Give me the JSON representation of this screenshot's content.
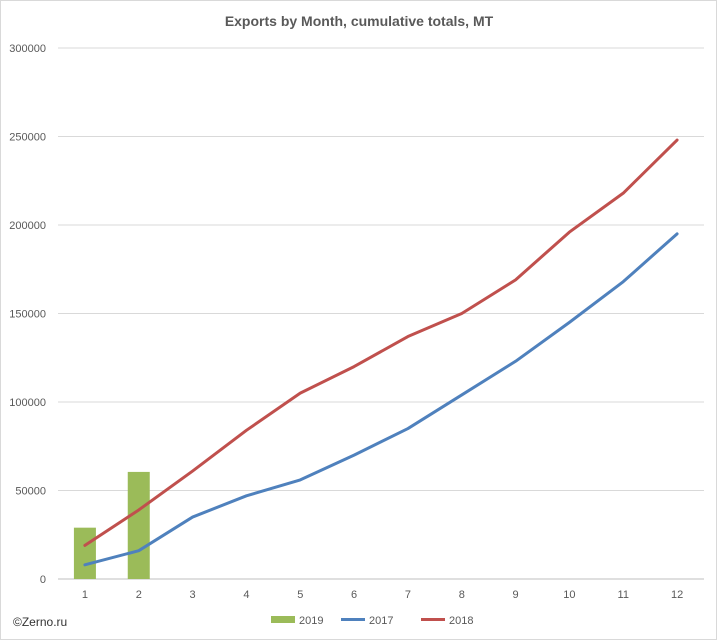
{
  "chart_data": {
    "type": "bar+line",
    "title": "Exports by Month, cumulative totals, MT",
    "xlabel": "",
    "ylabel": "",
    "ylim": [
      0,
      300000
    ],
    "yticks": [
      0,
      50000,
      100000,
      150000,
      200000,
      250000,
      300000
    ],
    "ytick_labels": [
      "0",
      "50000",
      "100000",
      "150000",
      "200000",
      "250000",
      "300000"
    ],
    "categories": [
      "1",
      "2",
      "3",
      "4",
      "5",
      "6",
      "7",
      "8",
      "9",
      "10",
      "11",
      "12"
    ],
    "grid": true,
    "legend_position": "bottom",
    "series": [
      {
        "name": "2019",
        "kind": "bar",
        "color": "#9bbb59",
        "values": [
          29000,
          60500,
          null,
          null,
          null,
          null,
          null,
          null,
          null,
          null,
          null,
          null
        ]
      },
      {
        "name": "2017",
        "kind": "line",
        "color": "#4f81bd",
        "values": [
          8000,
          16000,
          35000,
          47000,
          56000,
          70000,
          85000,
          104000,
          123000,
          145000,
          168000,
          195000
        ]
      },
      {
        "name": "2018",
        "kind": "line",
        "color": "#c0504d",
        "values": [
          19000,
          39000,
          61000,
          84000,
          105000,
          120000,
          137000,
          150000,
          169000,
          196000,
          218000,
          248000
        ]
      }
    ]
  },
  "footer": {
    "credit": "©Zerno.ru"
  }
}
